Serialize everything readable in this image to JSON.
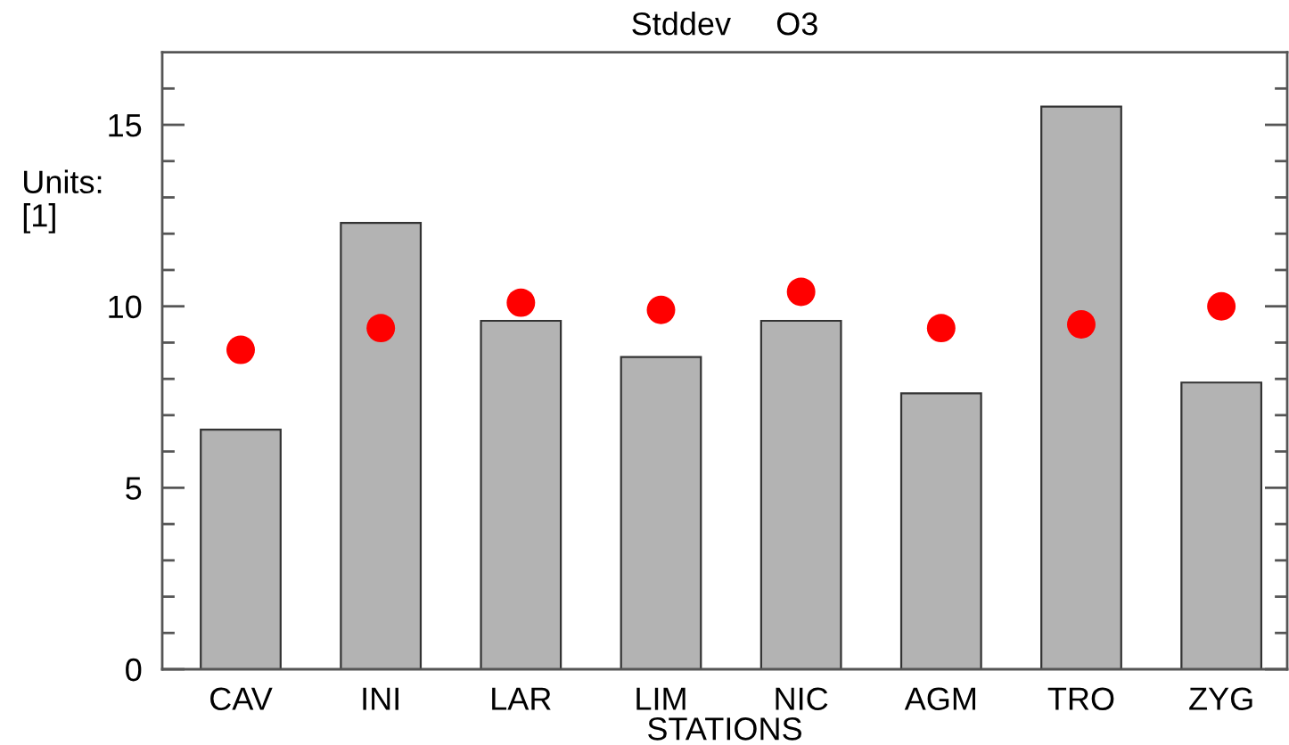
{
  "chart_data": {
    "type": "bar",
    "title": "Stddev     O3",
    "xlabel": "STATIONS",
    "ylabel": "Units:\n[1]",
    "categories": [
      "CAV",
      "INI",
      "LAR",
      "LIM",
      "NIC",
      "AGM",
      "TRO",
      "ZYG"
    ],
    "series": [
      {
        "color": "#b3b3b3",
        "values": [
          6.6,
          12.3,
          9.6,
          8.6,
          9.6,
          7.6,
          15.5,
          7.9
        ]
      },
      {
        "type": "scatter",
        "color": "#ff0000",
        "values": [
          8.8,
          9.4,
          10.1,
          9.9,
          10.4,
          9.4,
          9.5,
          10.0
        ]
      }
    ],
    "marker": "circle",
    "ylim": [
      0,
      17
    ],
    "yticks": [
      0,
      {
        "value": 1,
        "label": null
      },
      {
        "value": 2,
        "label": null
      },
      {
        "value": 3,
        "label": null
      },
      {
        "value": 4,
        "label": null
      },
      5,
      {
        "value": 6,
        "label": null
      },
      {
        "value": 7,
        "label": null
      },
      {
        "value": 8,
        "label": null
      },
      {
        "value": 9,
        "label": null
      },
      10,
      {
        "value": 11,
        "label": null
      },
      {
        "value": 12,
        "label": null
      },
      {
        "value": 13,
        "label": null
      },
      {
        "value": 14,
        "label": null
      },
      15,
      {
        "value": 16,
        "label": null
      }
    ],
    "grid": false,
    "legend": false
  }
}
